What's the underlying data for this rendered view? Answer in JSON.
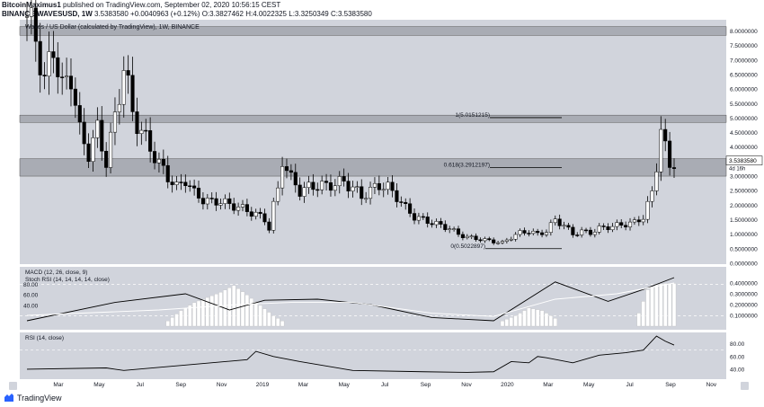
{
  "header": {
    "author": "BitcoinMaximus1",
    "published": "published on TradingView.com, September 02, 2020 10:56:15 CEST",
    "symbol": "BINANCE:WAVESUSD, 1W",
    "last": "3.5383580",
    "change": "+0.0040963 (+0.12%)",
    "open": "O:3.3827462",
    "high": "H:4.0022325",
    "low": "L:3.3250349",
    "close": "C:3.5383580"
  },
  "legend": {
    "main": "Waves / US Dollar (calculated by TradingView), 1W, BINANCE",
    "macd": "MACD (12, 26, close, 9)",
    "stoch": "Stoch RSI (14, 14, 14, 14, close)",
    "rsi": "RSI (14, close)"
  },
  "footer": {
    "brand": "TradingView"
  },
  "colors": {
    "plot_bg": "#d1d4dc",
    "up": "#ffffff",
    "down": "#000000",
    "zone": "#a9acb4",
    "macd_line": "#000000",
    "signal_line": "#ffffff",
    "hist": "#ffffff",
    "grid_dash": "#ffffff"
  },
  "chart_data": {
    "type": "candlestick",
    "timeframe": "1W",
    "price_axis": [
      "8.0000000",
      "7.5000000",
      "7.0000000",
      "6.5000000",
      "6.0000000",
      "5.5000000",
      "5.0000000",
      "4.5000000",
      "4.0000000",
      "3.5000000",
      "3.0000000",
      "2.5000000",
      "2.0000000",
      "1.5000000",
      "1.0000000",
      "0.5000000",
      "0.0000000"
    ],
    "price_range": [
      0,
      8.2
    ],
    "last_price_label": "3.5383580",
    "countdown_label": "4d 16h",
    "time_axis": [
      "Mar",
      "May",
      "Jul",
      "Sep",
      "Nov",
      "2019",
      "Mar",
      "May",
      "Jul",
      "Sep",
      "Nov",
      "2020",
      "Mar",
      "May",
      "Jul",
      "Sep",
      "Nov"
    ],
    "zones": [
      {
        "low": 7.85,
        "high": 8.15
      },
      {
        "low": 4.85,
        "high": 5.1
      },
      {
        "low": 3.0,
        "high": 3.6
      }
    ],
    "fib_levels": [
      {
        "label": "1(5.0151215)",
        "value": 5.0151215
      },
      {
        "label": "0.618(3.2912197)",
        "value": 3.2912197
      },
      {
        "label": "0(0.5022897)",
        "value": 0.5022897
      }
    ],
    "close_path": [
      [
        0,
        8.5
      ],
      [
        2,
        7.8
      ],
      [
        4,
        6.2
      ],
      [
        6,
        7.5
      ],
      [
        8,
        6.0
      ],
      [
        10,
        6.5
      ],
      [
        12,
        4.5
      ],
      [
        14,
        3.8
      ],
      [
        16,
        4.6
      ],
      [
        18,
        3.5
      ],
      [
        20,
        5.0
      ],
      [
        22,
        6.8
      ],
      [
        24,
        5.2
      ],
      [
        26,
        4.5
      ],
      [
        28,
        4.0
      ],
      [
        30,
        3.4
      ],
      [
        32,
        3.0
      ],
      [
        34,
        2.6
      ],
      [
        36,
        2.9
      ],
      [
        38,
        2.4
      ],
      [
        40,
        2.2
      ],
      [
        42,
        2.1
      ],
      [
        44,
        2.15
      ],
      [
        46,
        2.0
      ],
      [
        48,
        1.95
      ],
      [
        50,
        1.8
      ],
      [
        52,
        1.7
      ],
      [
        54,
        1.5
      ],
      [
        55,
        1.2
      ],
      [
        56,
        2.0
      ],
      [
        57,
        2.5
      ],
      [
        58,
        3.6
      ],
      [
        60,
        2.9
      ],
      [
        62,
        2.5
      ],
      [
        64,
        2.6
      ],
      [
        66,
        2.7
      ],
      [
        68,
        2.65
      ],
      [
        70,
        2.75
      ],
      [
        72,
        2.8
      ],
      [
        74,
        2.6
      ],
      [
        76,
        2.3
      ],
      [
        78,
        2.5
      ],
      [
        80,
        2.7
      ],
      [
        82,
        2.6
      ],
      [
        84,
        2.3
      ],
      [
        86,
        1.9
      ],
      [
        88,
        1.6
      ],
      [
        90,
        1.5
      ],
      [
        92,
        1.4
      ],
      [
        94,
        1.3
      ],
      [
        96,
        1.2
      ],
      [
        98,
        1.0
      ],
      [
        100,
        0.9
      ],
      [
        102,
        0.85
      ],
      [
        104,
        0.8
      ],
      [
        106,
        0.75
      ],
      [
        108,
        0.7
      ],
      [
        110,
        0.9
      ],
      [
        112,
        1.05
      ],
      [
        114,
        1.1
      ],
      [
        116,
        1.0
      ],
      [
        118,
        1.1
      ],
      [
        120,
        1.5
      ],
      [
        122,
        1.3
      ],
      [
        124,
        1.0
      ],
      [
        126,
        1.1
      ],
      [
        128,
        1.05
      ],
      [
        130,
        1.2
      ],
      [
        132,
        1.25
      ],
      [
        134,
        1.3
      ],
      [
        136,
        1.35
      ],
      [
        138,
        1.4
      ],
      [
        140,
        1.6
      ],
      [
        142,
        2.4
      ],
      [
        143,
        3.4
      ],
      [
        144,
        4.7
      ],
      [
        145,
        3.9
      ],
      [
        146,
        3.3
      ],
      [
        147,
        3.54
      ]
    ],
    "macd_axis": [
      "0.4000000",
      "0.3000000",
      "0.2000000",
      "0.1000000"
    ],
    "stoch_axis": [
      "80.00",
      "60.00",
      "40.00"
    ],
    "rsi_axis": [
      "80.00",
      "60.00",
      "40.00"
    ],
    "macd_line": [
      [
        0,
        0.05
      ],
      [
        20,
        0.22
      ],
      [
        36,
        0.3
      ],
      [
        46,
        0.15
      ],
      [
        54,
        0.24
      ],
      [
        66,
        0.25
      ],
      [
        78,
        0.2
      ],
      [
        92,
        0.08
      ],
      [
        106,
        0.05
      ],
      [
        120,
        0.41
      ],
      [
        132,
        0.23
      ],
      [
        140,
        0.34
      ],
      [
        147,
        0.45
      ]
    ],
    "signal_line": [
      [
        0,
        0.1
      ],
      [
        30,
        0.15
      ],
      [
        48,
        0.2
      ],
      [
        60,
        0.22
      ],
      [
        74,
        0.22
      ],
      [
        92,
        0.12
      ],
      [
        106,
        0.09
      ],
      [
        120,
        0.25
      ],
      [
        134,
        0.3
      ],
      [
        147,
        0.4
      ]
    ],
    "stoch_hist": [
      [
        32,
        10
      ],
      [
        35,
        30
      ],
      [
        38,
        45
      ],
      [
        41,
        55
      ],
      [
        44,
        65
      ],
      [
        47,
        78
      ],
      [
        50,
        60
      ],
      [
        53,
        40
      ],
      [
        56,
        20
      ],
      [
        58,
        10
      ],
      [
        108,
        10
      ],
      [
        111,
        20
      ],
      [
        114,
        35
      ],
      [
        117,
        30
      ],
      [
        120,
        15
      ],
      [
        139,
        25
      ],
      [
        141,
        70
      ],
      [
        143,
        80
      ],
      [
        145,
        82
      ],
      [
        147,
        82
      ]
    ],
    "rsi_values": [
      [
        0,
        40
      ],
      [
        18,
        42
      ],
      [
        22,
        38
      ],
      [
        50,
        55
      ],
      [
        52,
        68
      ],
      [
        56,
        60
      ],
      [
        62,
        52
      ],
      [
        74,
        38
      ],
      [
        90,
        36
      ],
      [
        100,
        35
      ],
      [
        106,
        36
      ],
      [
        110,
        52
      ],
      [
        114,
        50
      ],
      [
        116,
        60
      ],
      [
        118,
        58
      ],
      [
        124,
        50
      ],
      [
        130,
        62
      ],
      [
        136,
        66
      ],
      [
        140,
        70
      ],
      [
        143,
        92
      ],
      [
        145,
        84
      ],
      [
        147,
        78
      ]
    ]
  }
}
